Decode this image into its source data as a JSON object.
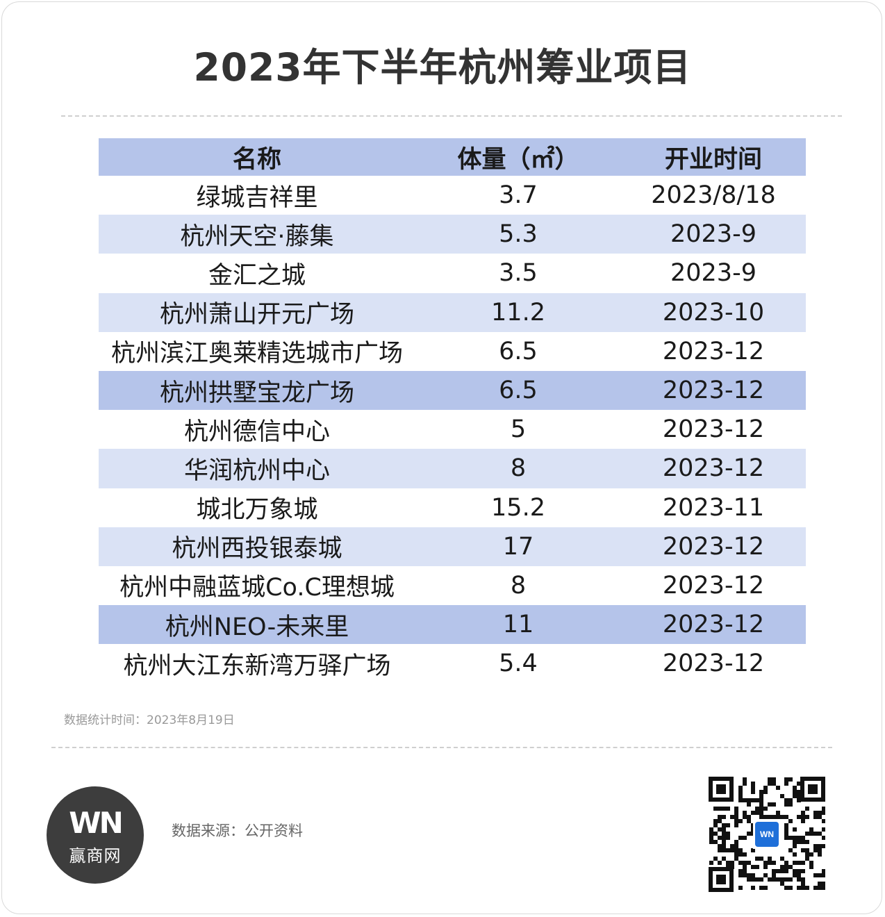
{
  "title": "2023年下半年杭州筹业项目",
  "table": {
    "headers": [
      "名称",
      "体量（㎡）",
      "开业时间"
    ],
    "rows": [
      {
        "name": "绿城吉祥里",
        "size": "3.7",
        "date": "2023/8/18",
        "shade": "white"
      },
      {
        "name": "杭州天空·藤集",
        "size": "5.3",
        "date": "2023-9",
        "shade": "light"
      },
      {
        "name": "金汇之城",
        "size": "3.5",
        "date": "2023-9",
        "shade": "white"
      },
      {
        "name": "杭州萧山开元广场",
        "size": "11.2",
        "date": "2023-10",
        "shade": "light"
      },
      {
        "name": "杭州滨江奥莱精选城市广场",
        "size": "6.5",
        "date": "2023-12",
        "shade": "white"
      },
      {
        "name": "杭州拱墅宝龙广场",
        "size": "6.5",
        "date": "2023-12",
        "shade": "dark"
      },
      {
        "name": "杭州德信中心",
        "size": "5",
        "date": "2023-12",
        "shade": "white"
      },
      {
        "name": "华润杭州中心",
        "size": "8",
        "date": "2023-12",
        "shade": "light"
      },
      {
        "name": "城北万象城",
        "size": "15.2",
        "date": "2023-11",
        "shade": "white"
      },
      {
        "name": "杭州西投银泰城",
        "size": "17",
        "date": "2023-12",
        "shade": "light"
      },
      {
        "name": "杭州中融蓝城Co.C理想城",
        "size": "8",
        "date": "2023-12",
        "shade": "white"
      },
      {
        "name": "杭州NEO-未来里",
        "size": "11",
        "date": "2023-12",
        "shade": "dark"
      },
      {
        "name": "杭州大江东新湾万驿广场",
        "size": "5.4",
        "date": "2023-12",
        "shade": "white"
      }
    ]
  },
  "stat_note": "数据统计时间：2023年8月19日",
  "footer": {
    "logo_mark": "WN",
    "logo_name": "赢商网",
    "source": "数据来源：公开资料",
    "qr_icon": "qr-code-icon"
  },
  "colors": {
    "header_bg": "#b5c4ea",
    "row_light": "#dae2f5",
    "row_dark": "#b5c4ea",
    "title_text": "#333333",
    "logo_bg": "#3d3d3d",
    "qr_badge": "#1e6fd9"
  }
}
